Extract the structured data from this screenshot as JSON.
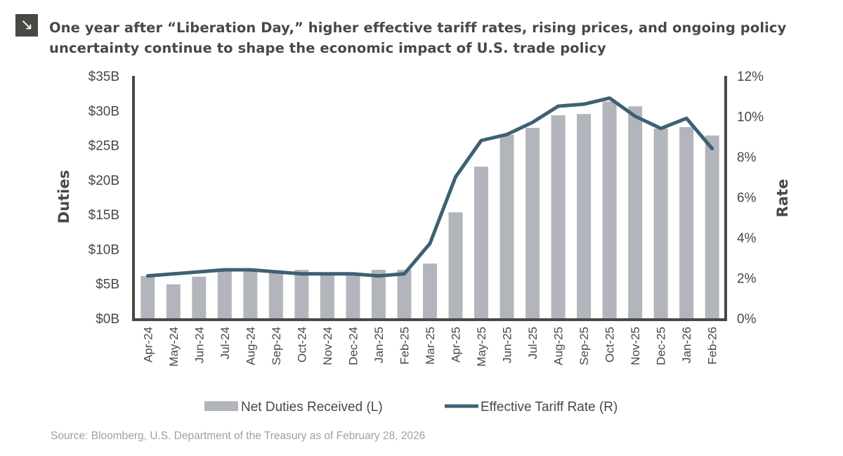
{
  "header": {
    "icon": "arrow-down-right-icon",
    "title": "One year after “Liberation Day,” higher effective tariff rates, rising prices, and ongoing policy uncertainty continue to shape the economic impact of U.S. trade policy"
  },
  "source": "Source: Bloomberg, U.S. Department of the Treasury as of February 28, 2026",
  "chart_data": {
    "type": "bar+line",
    "title": "",
    "categories": [
      "Apr-24",
      "May-24",
      "Jun-24",
      "Jul-24",
      "Aug-24",
      "Sep-24",
      "Oct-24",
      "Nov-24",
      "Dec-24",
      "Jan-25",
      "Feb-25",
      "Mar-25",
      "Apr-25",
      "May-25",
      "Jun-25",
      "Jul-25",
      "Aug-25",
      "Sep-25",
      "Oct-25",
      "Nov-25",
      "Dec-25",
      "Jan-26",
      "Feb-26"
    ],
    "ylabel": "Duties",
    "y2label": "Rate",
    "ylim": [
      0,
      35
    ],
    "y2lim": [
      0,
      12
    ],
    "yticks": [
      "$0B",
      "$5B",
      "$10B",
      "$15B",
      "$20B",
      "$25B",
      "$30B",
      "$35B"
    ],
    "y2ticks": [
      "0%",
      "2%",
      "4%",
      "6%",
      "8%",
      "10%",
      "12%"
    ],
    "grid": false,
    "legend_position": "bottom",
    "colors": {
      "bars": "#b3b5bd",
      "line": "#3d6173",
      "axis": "#4a4843"
    },
    "series": [
      {
        "name": "Net Duties Received (L)",
        "type": "bar",
        "axis": "left",
        "unit": "$B",
        "values": [
          6.1,
          4.9,
          6.0,
          6.9,
          7.1,
          6.5,
          7.0,
          6.4,
          6.4,
          7.0,
          7.0,
          7.9,
          15.3,
          21.9,
          26.5,
          27.5,
          29.3,
          29.5,
          31.3,
          30.6,
          27.4,
          27.6,
          26.4
        ]
      },
      {
        "name": "Effective Tariff Rate (R)",
        "type": "line",
        "axis": "right",
        "unit": "%",
        "values": [
          2.1,
          2.2,
          2.3,
          2.4,
          2.4,
          2.3,
          2.2,
          2.2,
          2.2,
          2.1,
          2.2,
          3.7,
          7.0,
          8.8,
          9.1,
          9.7,
          10.5,
          10.6,
          10.9,
          10.0,
          9.4,
          9.9,
          8.4
        ]
      }
    ]
  }
}
